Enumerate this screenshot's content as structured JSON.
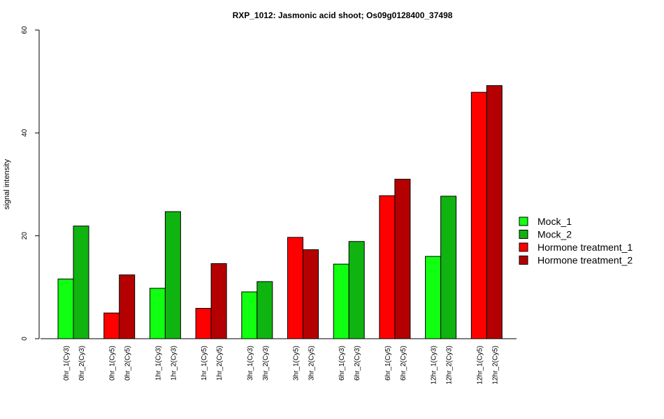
{
  "chart_data": {
    "type": "bar",
    "title": "RXP_1012: Jasmonic acid shoot; Os09g0128400_37498",
    "xlabel": "",
    "ylabel": "signal intensity",
    "ylim": [
      0,
      60
    ],
    "yticks": [
      "0",
      "20",
      "40",
      "60"
    ],
    "grid": false,
    "legend_position": "right",
    "legend": [
      {
        "name": "Mock_1",
        "color": "#11ff11"
      },
      {
        "name": "Mock_2",
        "color": "#10b410"
      },
      {
        "name": "Hormone treatment_1",
        "color": "#ff0000"
      },
      {
        "name": "Hormone treatment_2",
        "color": "#b40000"
      }
    ],
    "bars": [
      {
        "label": "0hr_1(Cy3)",
        "value": 11.6,
        "color": "#11ff11"
      },
      {
        "label": "0hr_2(Cy3)",
        "value": 21.9,
        "color": "#10b410"
      },
      {
        "label": "0hr_1(Cy5)",
        "value": 5.0,
        "color": "#ff0000"
      },
      {
        "label": "0hr_2(Cy5)",
        "value": 12.4,
        "color": "#b40000"
      },
      {
        "label": "1hr_1(Cy3)",
        "value": 9.8,
        "color": "#11ff11"
      },
      {
        "label": "1hr_2(Cy3)",
        "value": 24.7,
        "color": "#10b410"
      },
      {
        "label": "1hr_1(Cy5)",
        "value": 5.9,
        "color": "#ff0000"
      },
      {
        "label": "1hr_2(Cy5)",
        "value": 14.6,
        "color": "#b40000"
      },
      {
        "label": "3hr_1(Cy3)",
        "value": 9.1,
        "color": "#11ff11"
      },
      {
        "label": "3hr_2(Cy3)",
        "value": 11.1,
        "color": "#10b410"
      },
      {
        "label": "3hr_1(Cy5)",
        "value": 19.7,
        "color": "#ff0000"
      },
      {
        "label": "3hr_2(Cy5)",
        "value": 17.3,
        "color": "#b40000"
      },
      {
        "label": "6hr_1(Cy3)",
        "value": 14.5,
        "color": "#11ff11"
      },
      {
        "label": "6hr_2(Cy3)",
        "value": 18.9,
        "color": "#10b410"
      },
      {
        "label": "6hr_1(Cy5)",
        "value": 27.8,
        "color": "#ff0000"
      },
      {
        "label": "6hr_2(Cy5)",
        "value": 31.0,
        "color": "#b40000"
      },
      {
        "label": "12hr_1(Cy3)",
        "value": 16.0,
        "color": "#11ff11"
      },
      {
        "label": "12hr_2(Cy3)",
        "value": 27.7,
        "color": "#10b410"
      },
      {
        "label": "12hr_1(Cy5)",
        "value": 47.9,
        "color": "#ff0000"
      },
      {
        "label": "12hr_2(Cy5)",
        "value": 49.2,
        "color": "#b40000"
      }
    ]
  }
}
